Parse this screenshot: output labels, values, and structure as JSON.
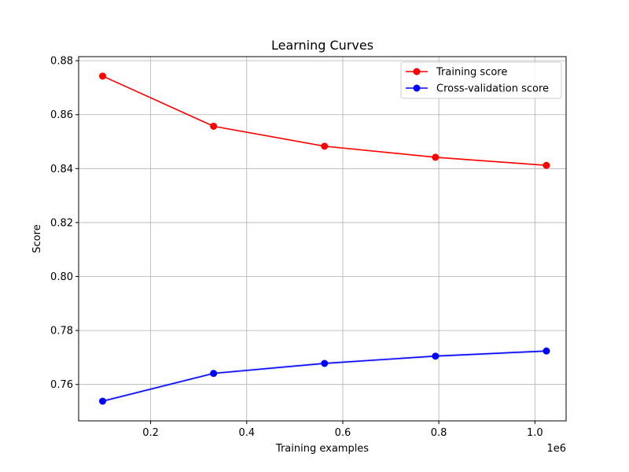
{
  "chart_data": {
    "type": "line",
    "title": "Learning Curves",
    "xlabel": "Training examples",
    "ylabel": "Score",
    "x_offset_label": "1e6",
    "x": [
      100000,
      331000,
      562000,
      793000,
      1024000
    ],
    "xlim": [
      50000,
      1065000
    ],
    "ylim": [
      0.7465,
      0.8815
    ],
    "x_ticks": [
      200000,
      400000,
      600000,
      800000,
      1000000
    ],
    "x_tick_labels": [
      "0.2",
      "0.4",
      "0.6",
      "0.8",
      "1.0"
    ],
    "y_ticks": [
      0.76,
      0.78,
      0.8,
      0.82,
      0.84,
      0.86,
      0.88
    ],
    "y_tick_labels": [
      "0.76",
      "0.78",
      "0.80",
      "0.82",
      "0.84",
      "0.86",
      "0.88"
    ],
    "grid": true,
    "legend_position": "top-right",
    "series": [
      {
        "name": "Training score",
        "color": "#ff0000",
        "values": [
          0.8743,
          0.8557,
          0.8483,
          0.8442,
          0.8412
        ],
        "band": 0.0003
      },
      {
        "name": "Cross-validation score",
        "color": "#0000ff",
        "values": [
          0.7538,
          0.7641,
          0.7678,
          0.7705,
          0.7724
        ],
        "band": 0.0006
      }
    ]
  }
}
